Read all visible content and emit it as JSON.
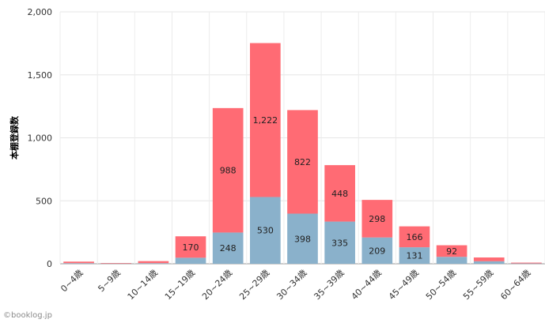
{
  "chart_data": {
    "type": "bar",
    "stacked": true,
    "ylabel": "本棚登録数",
    "ylim": [
      0,
      2000
    ],
    "yticks": [
      "0",
      "500",
      "1,000",
      "1,500",
      "2,000"
    ],
    "ytick_values": [
      0,
      500,
      1000,
      1500,
      2000
    ],
    "grid": true,
    "categories": [
      "0~4歳",
      "5~9歳",
      "10~14歳",
      "15~19歳",
      "20~24歳",
      "25~29歳",
      "30~34歳",
      "35~39歳",
      "40~44歳",
      "45~49歳",
      "50~54歳",
      "55~59歳",
      "60~64歳"
    ],
    "series": [
      {
        "color": "#8ab1cb",
        "values": [
          5,
          2,
          5,
          48,
          248,
          530,
          398,
          335,
          209,
          131,
          55,
          20,
          3
        ],
        "labels": [
          "",
          "",
          "",
          "",
          "248",
          "530",
          "398",
          "335",
          "209",
          "131",
          "",
          "",
          ""
        ]
      },
      {
        "color": "#ff6b74",
        "values": [
          12,
          4,
          16,
          170,
          988,
          1222,
          822,
          448,
          298,
          166,
          92,
          30,
          6
        ],
        "labels": [
          "",
          "",
          "",
          "170",
          "988",
          "1,222",
          "822",
          "448",
          "298",
          "166",
          "92",
          "",
          ""
        ]
      }
    ]
  },
  "credit": "©booklog.jp"
}
